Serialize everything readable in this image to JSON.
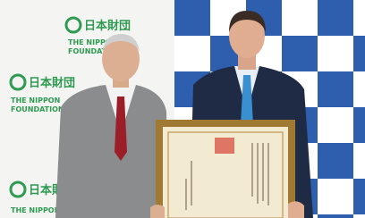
{
  "backdrop": {
    "logos": [
      {
        "mark": "日本財団",
        "lines": [
          "THE NIPPON",
          "FOUNDATION"
        ]
      },
      {
        "mark": "日本財団",
        "lines": [
          "THE NIPPON",
          "FOUNDATION"
        ]
      },
      {
        "mark": "日本財団",
        "lines": [
          "THE NIPPON"
        ]
      }
    ]
  }
}
